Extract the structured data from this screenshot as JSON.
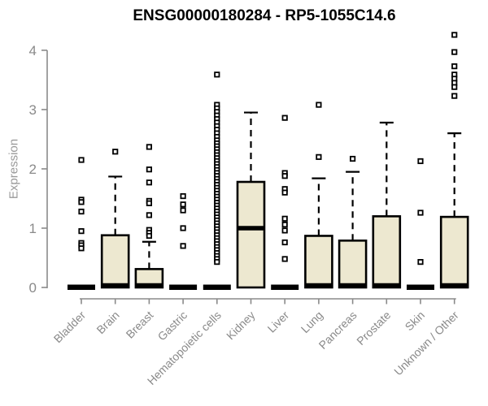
{
  "chart_data": {
    "type": "boxplot",
    "title": "ENSG00000180284 - RP5-1055C14.6",
    "ylabel": "Expression",
    "xlabel": "",
    "ylim": [
      0,
      4.3
    ],
    "yticks": [
      0,
      1,
      2,
      3,
      4
    ],
    "grid": false,
    "legend": "none",
    "categories": [
      "Bladder",
      "Brain",
      "Breast",
      "Gastric",
      "Hematopoietic cells",
      "Kidney",
      "Liver",
      "Lung",
      "Pancreas",
      "Prostate",
      "Skin",
      "Unknown / Other"
    ],
    "boxes": [
      {
        "category": "Bladder",
        "q1": 0,
        "median": 0,
        "q3": 0,
        "whisker_low": 0,
        "whisker_high": 0,
        "outliers": [
          2.15,
          1.48,
          1.44,
          1.28,
          0.95,
          0.75,
          0.71,
          0.66
        ]
      },
      {
        "category": "Brain",
        "q1": 0,
        "median": 0,
        "q3": 0.88,
        "whisker_low": 0,
        "whisker_high": 1.87,
        "outliers": [
          2.29
        ]
      },
      {
        "category": "Breast",
        "q1": 0,
        "median": 0,
        "q3": 0.31,
        "whisker_low": 0,
        "whisker_high": 0.77,
        "outliers": [
          2.37,
          1.99,
          1.77,
          1.46,
          1.42,
          1.22,
          0.97,
          0.92,
          0.87
        ]
      },
      {
        "category": "Gastric",
        "q1": 0,
        "median": 0,
        "q3": 0,
        "whisker_low": 0,
        "whisker_high": 0,
        "outliers": [
          1.54,
          1.4,
          1.3,
          1.0,
          0.7
        ]
      },
      {
        "category": "Hematopoietic cells",
        "q1": 0,
        "median": 0,
        "q3": 0,
        "whisker_low": 0,
        "whisker_high": 0,
        "outliers": [
          3.59,
          3.08,
          3.02,
          2.96,
          2.9,
          2.84,
          2.78,
          2.72,
          2.66,
          2.6,
          2.54,
          2.48,
          2.43,
          2.38,
          2.33,
          2.28,
          2.23,
          2.18,
          2.13,
          2.08,
          2.03,
          1.98,
          1.93,
          1.88,
          1.83,
          1.78,
          1.73,
          1.68,
          1.63,
          1.58,
          1.53,
          1.48,
          1.43,
          1.38,
          1.33,
          1.28,
          1.23,
          1.18,
          1.13,
          1.08,
          1.03,
          0.98,
          0.93,
          0.88,
          0.83,
          0.78,
          0.73,
          0.68,
          0.63,
          0.58,
          0.53,
          0.48,
          0.43
        ]
      },
      {
        "category": "Kidney",
        "q1": 0,
        "median": 1.0,
        "q3": 1.78,
        "whisker_low": 0,
        "whisker_high": 2.95,
        "outliers": []
      },
      {
        "category": "Liver",
        "q1": 0,
        "median": 0,
        "q3": 0,
        "whisker_low": 0,
        "whisker_high": 0,
        "outliers": [
          2.86,
          1.93,
          1.88,
          1.66,
          1.6,
          1.16,
          1.06,
          0.96,
          0.76,
          0.48
        ]
      },
      {
        "category": "Lung",
        "q1": 0,
        "median": 0,
        "q3": 0.87,
        "whisker_low": 0,
        "whisker_high": 1.84,
        "outliers": [
          3.08,
          2.2
        ]
      },
      {
        "category": "Pancreas",
        "q1": 0,
        "median": 0,
        "q3": 0.79,
        "whisker_low": 0,
        "whisker_high": 1.95,
        "outliers": [
          2.17
        ]
      },
      {
        "category": "Prostate",
        "q1": 0,
        "median": 0,
        "q3": 1.2,
        "whisker_low": 0,
        "whisker_high": 2.78,
        "outliers": []
      },
      {
        "category": "Skin",
        "q1": 0,
        "median": 0,
        "q3": 0,
        "whisker_low": 0,
        "whisker_high": 0,
        "outliers": [
          2.13,
          1.26,
          0.43
        ]
      },
      {
        "category": "Unknown / Other",
        "q1": 0,
        "median": 0,
        "q3": 1.19,
        "whisker_low": 0,
        "whisker_high": 2.6,
        "outliers": [
          4.26,
          3.97,
          3.73,
          3.59,
          3.52,
          3.45,
          3.38,
          3.23
        ]
      }
    ],
    "style": {
      "box_fill": "#EDE8D0",
      "box_stroke": "#000000",
      "median_color": "#000000",
      "whisker_color": "#000000",
      "outlier_color": "#000000",
      "axis_color": "#8a8a8a",
      "tick_label_color": "#8a8a8a",
      "axis_title_color": "#999999",
      "title_color": "#000000",
      "background": "#ffffff"
    }
  }
}
